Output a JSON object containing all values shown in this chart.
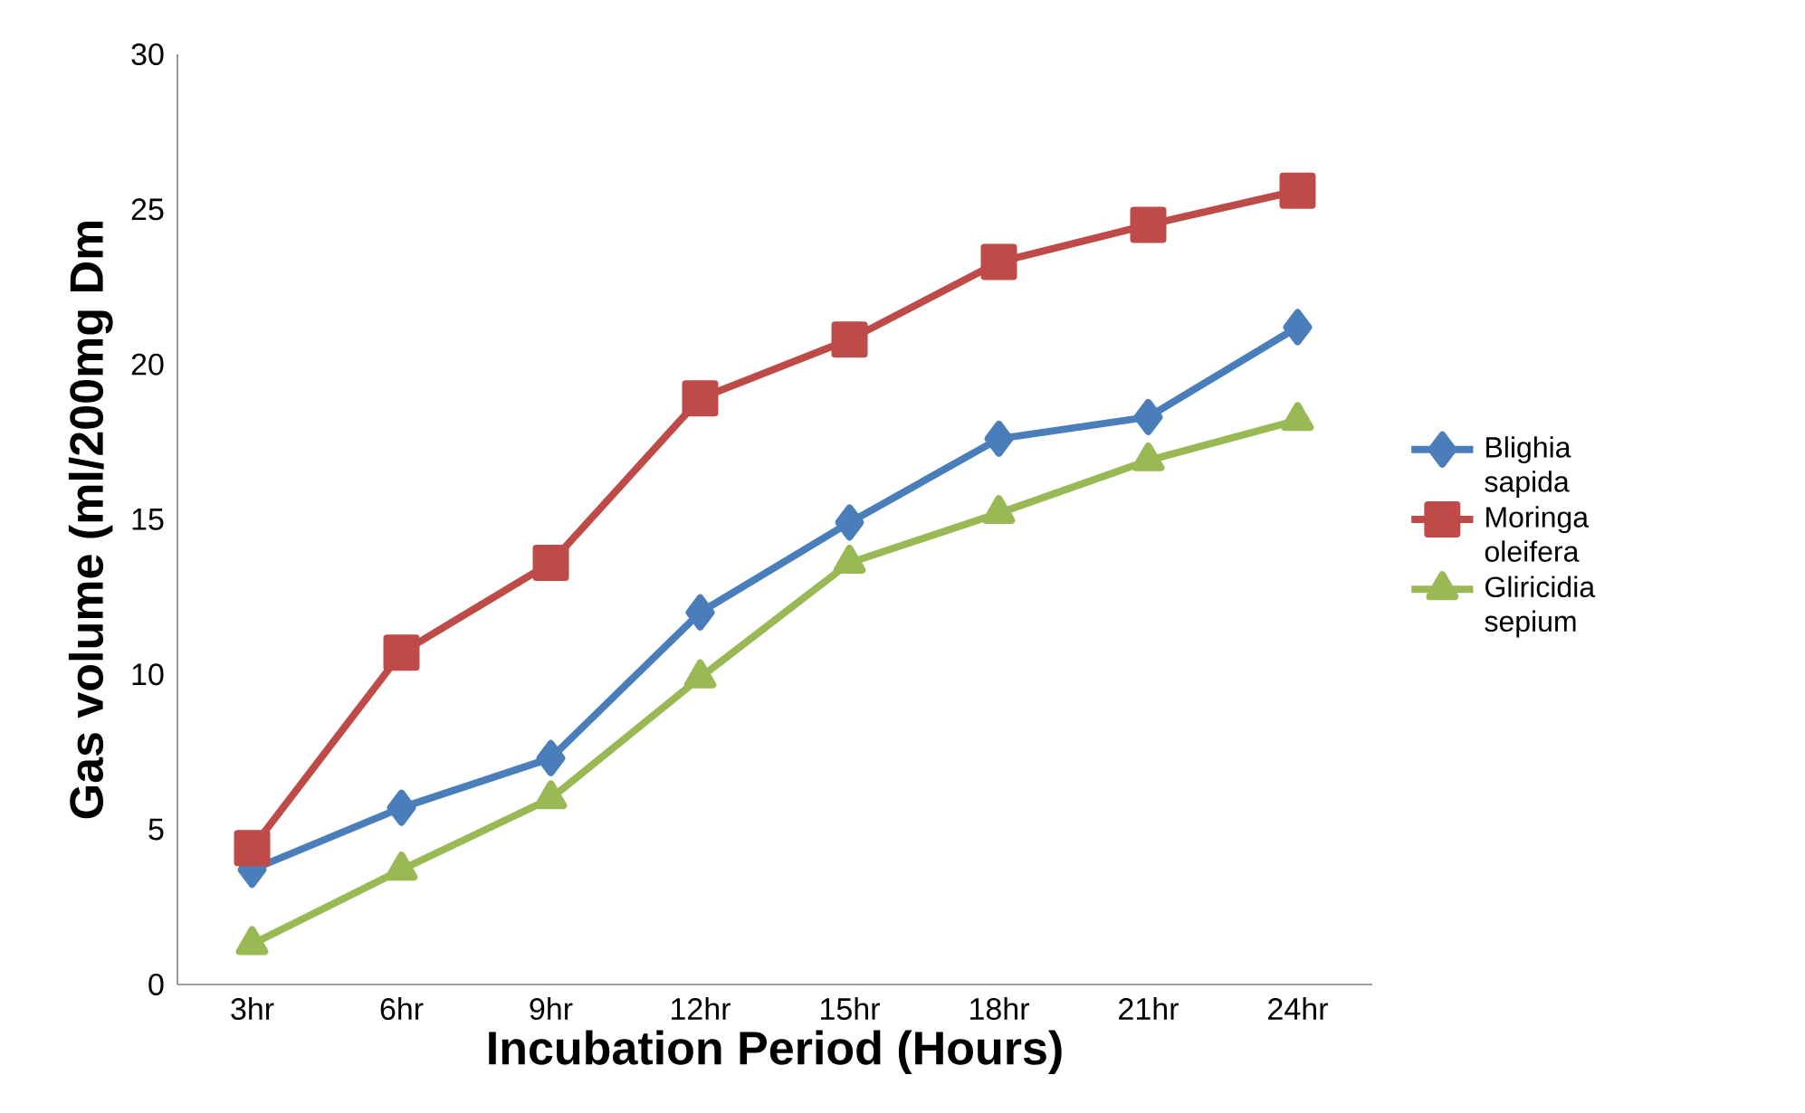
{
  "chart_data": {
    "type": "line",
    "xlabel": "Incubation Period (Hours)",
    "ylabel": "Gas volume (ml/200mg Dm",
    "categories": [
      "3hr",
      "6hr",
      "9hr",
      "12hr",
      "15hr",
      "18hr",
      "21hr",
      "24hr"
    ],
    "series": [
      {
        "name": "Blighia sapida",
        "color": "#4a7ebb",
        "marker": "diamond",
        "values": [
          3.7,
          5.7,
          7.3,
          12.0,
          14.9,
          17.6,
          18.3,
          21.2
        ]
      },
      {
        "name": "Moringa oleifera",
        "color": "#be4b48",
        "marker": "square",
        "values": [
          4.4,
          10.7,
          13.6,
          18.9,
          20.8,
          23.3,
          24.5,
          25.6
        ]
      },
      {
        "name": "Gliricidia sepium",
        "color": "#98b954",
        "marker": "triangle",
        "values": [
          1.3,
          3.7,
          6.0,
          9.9,
          13.6,
          15.2,
          16.9,
          18.2
        ]
      }
    ],
    "ylim": [
      0,
      30
    ],
    "yticks": [
      0,
      5,
      10,
      15,
      20,
      25,
      30
    ],
    "legend": "right",
    "grid": false
  }
}
